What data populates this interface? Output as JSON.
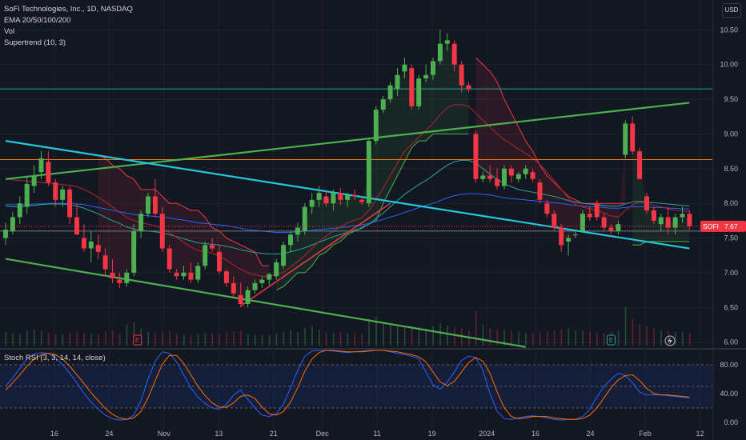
{
  "legend": {
    "symbol": "SoFi Technologies, Inc., 1D, NASDAQ",
    "ema": "EMA 20/50/100/200",
    "vol": "Vol",
    "supertrend": "Supertrend (10, 3)"
  },
  "rsi_legend": "Stoch RSI (3, 3, 14, 14, close)",
  "currency": "USD",
  "price_tag": {
    "ticker": "SOFI",
    "value": "7.67",
    "price": 7.67
  },
  "event_markers": [
    "E",
    "E"
  ],
  "colors": {
    "up": "#4caf50",
    "down": "#f23645",
    "ema_red": "#b2262e",
    "ema_teal": "#26a69a",
    "ema_blue": "#2962ff",
    "trend_green": "#4caf50",
    "trend_teal": "#26c6da",
    "level_orange": "#f57c00",
    "level_teal": "#26a69a",
    "rsi_k": "#2962ff",
    "rsi_d": "#ff6d00",
    "supertrend_up": "#4caf50",
    "supertrend_down": "#f23645"
  },
  "chart_data": {
    "type": "candlestick",
    "price_ylim": [
      5.95,
      10.7
    ],
    "price_ticks": [
      "10.50",
      "10.00",
      "9.50",
      "9.00",
      "8.50",
      "8.00",
      "7.50",
      "7.00",
      "6.50",
      "6.00"
    ],
    "x_ticks": [
      "16",
      "24",
      "Nov",
      "13",
      "21",
      "Dec",
      "11",
      "19",
      "2024",
      "16",
      "24",
      "Feb",
      "12"
    ],
    "candles": [
      [
        7.5,
        7.72,
        7.4,
        7.62
      ],
      [
        7.6,
        7.88,
        7.55,
        7.8
      ],
      [
        7.8,
        8.1,
        7.7,
        8.0
      ],
      [
        7.95,
        8.4,
        7.85,
        8.28
      ],
      [
        8.25,
        8.55,
        8.15,
        8.4
      ],
      [
        8.45,
        8.75,
        8.35,
        8.65
      ],
      [
        8.6,
        8.75,
        8.25,
        8.3
      ],
      [
        8.3,
        8.35,
        7.95,
        8.05
      ],
      [
        8.05,
        8.25,
        7.95,
        8.2
      ],
      [
        8.2,
        8.25,
        7.7,
        7.8
      ],
      [
        7.8,
        8.0,
        7.55,
        7.55
      ],
      [
        7.5,
        7.7,
        7.3,
        7.35
      ],
      [
        7.35,
        7.6,
        7.15,
        7.45
      ],
      [
        7.4,
        7.55,
        7.2,
        7.3
      ],
      [
        7.25,
        7.35,
        6.95,
        7.05
      ],
      [
        7.0,
        7.2,
        6.85,
        6.92
      ],
      [
        6.9,
        7.0,
        6.78,
        6.85
      ],
      [
        6.85,
        7.05,
        6.8,
        7.0
      ],
      [
        7.0,
        7.7,
        6.95,
        7.6
      ],
      [
        7.6,
        7.9,
        7.5,
        7.85
      ],
      [
        7.85,
        8.15,
        7.8,
        8.1
      ],
      [
        8.1,
        8.35,
        7.8,
        7.85
      ],
      [
        7.85,
        7.95,
        7.3,
        7.35
      ],
      [
        7.35,
        7.4,
        7.0,
        7.05
      ],
      [
        7.0,
        7.05,
        6.9,
        6.95
      ],
      [
        6.95,
        7.1,
        6.9,
        7.0
      ],
      [
        7.0,
        7.15,
        6.85,
        6.9
      ],
      [
        6.9,
        7.15,
        6.85,
        7.1
      ],
      [
        7.1,
        7.45,
        7.05,
        7.4
      ],
      [
        7.4,
        7.5,
        7.3,
        7.35
      ],
      [
        7.3,
        7.4,
        6.98,
        7.02
      ],
      [
        7.02,
        7.05,
        6.8,
        6.85
      ],
      [
        6.85,
        6.95,
        6.65,
        6.7
      ],
      [
        6.68,
        6.85,
        6.5,
        6.55
      ],
      [
        6.55,
        6.8,
        6.5,
        6.75
      ],
      [
        6.75,
        6.9,
        6.7,
        6.85
      ],
      [
        6.85,
        6.95,
        6.78,
        6.9
      ],
      [
        6.9,
        7.0,
        6.82,
        6.98
      ],
      [
        6.95,
        7.2,
        6.9,
        7.15
      ],
      [
        7.1,
        7.45,
        7.05,
        7.4
      ],
      [
        7.4,
        7.6,
        7.3,
        7.55
      ],
      [
        7.55,
        7.72,
        7.45,
        7.65
      ],
      [
        7.6,
        8.0,
        7.55,
        7.95
      ],
      [
        7.95,
        8.15,
        7.85,
        8.05
      ],
      [
        8.05,
        8.25,
        7.95,
        8.15
      ],
      [
        8.1,
        8.2,
        7.95,
        8.0
      ],
      [
        8.0,
        8.2,
        7.9,
        8.15
      ],
      [
        8.15,
        8.22,
        7.98,
        8.05
      ],
      [
        8.05,
        8.15,
        7.95,
        8.12
      ],
      [
        8.12,
        8.2,
        8.05,
        8.1
      ],
      [
        8.05,
        8.1,
        7.98,
        8.02
      ],
      [
        8.0,
        8.95,
        7.95,
        8.9
      ],
      [
        8.9,
        9.4,
        8.85,
        9.35
      ],
      [
        9.35,
        9.55,
        9.3,
        9.5
      ],
      [
        9.5,
        9.75,
        9.45,
        9.7
      ],
      [
        9.65,
        9.95,
        9.55,
        9.85
      ],
      [
        9.9,
        10.1,
        9.8,
        10.0
      ],
      [
        9.95,
        10.0,
        9.35,
        9.4
      ],
      [
        9.4,
        9.85,
        9.35,
        9.8
      ],
      [
        9.8,
        10.0,
        9.75,
        9.85
      ],
      [
        9.85,
        10.1,
        9.78,
        10.05
      ],
      [
        10.05,
        10.5,
        10.0,
        10.3
      ],
      [
        10.3,
        10.45,
        10.2,
        10.35
      ],
      [
        10.3,
        10.35,
        9.9,
        10.0
      ],
      [
        10.0,
        10.05,
        9.6,
        9.7
      ],
      [
        9.7,
        9.75,
        9.6,
        9.65
      ],
      [
        9.0,
        9.05,
        8.3,
        8.35
      ],
      [
        8.35,
        8.45,
        8.3,
        8.4
      ],
      [
        8.4,
        8.55,
        8.3,
        8.35
      ],
      [
        8.35,
        8.5,
        8.2,
        8.25
      ],
      [
        8.25,
        8.55,
        8.2,
        8.5
      ],
      [
        8.5,
        8.55,
        8.3,
        8.4
      ],
      [
        8.35,
        8.45,
        8.3,
        8.42
      ],
      [
        8.42,
        8.55,
        8.35,
        8.5
      ],
      [
        8.45,
        8.5,
        8.3,
        8.35
      ],
      [
        8.3,
        8.35,
        8.0,
        8.05
      ],
      [
        8.0,
        8.05,
        7.8,
        7.85
      ],
      [
        7.85,
        7.9,
        7.6,
        7.65
      ],
      [
        7.65,
        7.7,
        7.3,
        7.4
      ],
      [
        7.45,
        7.55,
        7.25,
        7.5
      ],
      [
        7.55,
        7.6,
        7.5,
        7.55
      ],
      [
        7.6,
        7.9,
        7.58,
        7.85
      ],
      [
        7.85,
        7.95,
        7.75,
        7.8
      ],
      [
        8.0,
        8.05,
        7.75,
        7.8
      ],
      [
        7.8,
        7.85,
        7.6,
        7.65
      ],
      [
        7.65,
        7.7,
        7.55,
        7.6
      ],
      [
        7.6,
        7.75,
        7.55,
        7.7
      ],
      [
        8.7,
        9.2,
        8.65,
        9.15
      ],
      [
        9.15,
        9.25,
        8.7,
        8.75
      ],
      [
        8.75,
        8.8,
        8.35,
        8.35
      ],
      [
        8.1,
        8.15,
        7.85,
        7.9
      ],
      [
        7.9,
        7.95,
        7.7,
        7.75
      ],
      [
        7.7,
        7.85,
        7.6,
        7.8
      ],
      [
        7.8,
        7.95,
        7.55,
        7.65
      ],
      [
        7.65,
        7.85,
        7.55,
        7.8
      ],
      [
        7.8,
        7.95,
        7.72,
        7.85
      ],
      [
        7.85,
        7.9,
        7.62,
        7.67
      ]
    ],
    "ema_red": [
      8.35,
      8.34,
      8.33,
      8.32,
      8.31,
      8.3,
      8.29,
      8.28,
      8.27,
      8.26,
      8.24,
      8.2,
      8.15,
      8.09,
      8.02,
      7.95,
      7.87,
      7.8,
      7.75,
      7.72,
      7.7,
      7.68,
      7.64,
      7.58,
      7.51,
      7.44,
      7.37,
      7.32,
      7.3,
      7.28,
      7.24,
      7.18,
      7.11,
      7.05,
      7.0,
      6.97,
      6.95,
      6.95,
      6.97,
      7.01,
      7.08,
      7.16,
      7.25,
      7.35,
      7.45,
      7.53,
      7.6,
      7.66,
      7.72,
      7.76,
      7.79,
      7.9,
      8.05,
      8.22,
      8.4,
      8.58,
      8.75,
      8.85,
      8.95,
      9.05,
      9.15,
      9.28,
      9.38,
      9.42,
      9.42,
      9.4,
      9.3,
      9.2,
      9.1,
      9.0,
      8.92,
      8.85,
      8.78,
      8.72,
      8.65,
      8.56,
      8.45,
      8.33,
      8.2,
      8.08,
      7.98,
      7.95,
      7.92,
      7.9,
      7.86,
      7.82,
      7.8,
      7.9,
      7.98,
      8.02,
      8.0,
      7.97,
      7.95,
      7.92,
      7.9,
      7.89,
      7.88
    ],
    "ema_teal": [
      7.96,
      7.95,
      7.95,
      7.96,
      7.97,
      7.98,
      7.99,
      7.99,
      7.99,
      7.98,
      7.96,
      7.93,
      7.89,
      7.85,
      7.8,
      7.75,
      7.71,
      7.66,
      7.63,
      7.61,
      7.6,
      7.59,
      7.57,
      7.55,
      7.52,
      7.49,
      7.46,
      7.43,
      7.42,
      7.41,
      7.4,
      7.38,
      7.36,
      7.33,
      7.31,
      7.29,
      7.28,
      7.27,
      7.27,
      7.28,
      7.3,
      7.33,
      7.36,
      7.4,
      7.44,
      7.48,
      7.52,
      7.55,
      7.58,
      7.61,
      7.64,
      7.7,
      7.78,
      7.86,
      7.95,
      8.04,
      8.13,
      8.2,
      8.27,
      8.33,
      8.4,
      8.48,
      8.55,
      8.6,
      8.62,
      8.62,
      8.58,
      8.5,
      8.42,
      8.35,
      8.28,
      8.24,
      8.2,
      8.18,
      8.16,
      8.14,
      8.12,
      8.1,
      8.07,
      8.04,
      8.02,
      8.0,
      7.99,
      7.98,
      7.97,
      7.96,
      7.96,
      7.99,
      8.02,
      8.03,
      8.02,
      8.01,
      8.0,
      7.99,
      7.98,
      7.97,
      7.96
    ],
    "ema_blue": [
      7.98,
      7.98,
      7.98,
      7.98,
      7.99,
      7.99,
      8.0,
      8.0,
      8.0,
      8.0,
      7.99,
      7.98,
      7.96,
      7.94,
      7.92,
      7.9,
      7.88,
      7.86,
      7.84,
      7.83,
      7.82,
      7.81,
      7.8,
      7.79,
      7.77,
      7.76,
      7.74,
      7.72,
      7.71,
      7.7,
      7.69,
      7.68,
      7.66,
      7.64,
      7.62,
      7.61,
      7.6,
      7.59,
      7.58,
      7.58,
      7.58,
      7.59,
      7.6,
      7.61,
      7.62,
      7.63,
      7.64,
      7.65,
      7.66,
      7.68,
      7.69,
      7.71,
      7.74,
      7.77,
      7.8,
      7.83,
      7.87,
      7.9,
      7.94,
      7.97,
      8.0,
      8.04,
      8.08,
      8.11,
      8.13,
      8.14,
      8.14,
      8.13,
      8.12,
      8.1,
      8.08,
      8.07,
      8.06,
      8.05,
      8.04,
      8.03,
      8.02,
      8.01,
      8.0,
      7.98,
      7.97,
      7.96,
      7.95,
      7.95,
      7.94,
      7.93,
      7.93,
      7.94,
      7.95,
      7.95,
      7.95,
      7.94,
      7.94,
      7.93,
      7.93,
      7.92,
      7.92
    ],
    "supertrend_segments": [
      {
        "color": "down",
        "from": 13,
        "values": [
          8.7,
          8.65,
          8.55,
          8.5,
          8.4,
          8.35,
          8.2,
          8.2,
          8.2,
          8.1,
          8.0,
          8.0,
          7.95,
          7.9,
          7.9,
          7.8,
          7.65,
          7.6,
          7.5,
          7.45,
          7.4,
          7.35,
          7.3,
          7.1,
          7.1
        ]
      },
      {
        "color": "up",
        "from": 38,
        "values": [
          6.75,
          6.8,
          6.9,
          7.0,
          7.0,
          7.1,
          7.25,
          7.3,
          7.4,
          7.45,
          7.55,
          7.6,
          7.65,
          7.7,
          7.75,
          8.0,
          8.2,
          8.4,
          8.6,
          8.8,
          8.9,
          8.9,
          9.0,
          9.0,
          9.0,
          9.0,
          9.0,
          9.0
        ]
      },
      {
        "color": "down",
        "from": 66,
        "values": [
          10.1,
          10.0,
          9.9,
          9.75,
          9.5,
          9.3,
          9.1,
          8.9,
          8.75,
          8.55,
          8.4,
          8.3,
          8.2,
          8.1,
          8.05,
          8.0,
          8.0,
          8.0,
          8.0,
          8.0,
          8.0,
          8.0
        ]
      },
      {
        "color": "up",
        "from": 88,
        "values": [
          7.4,
          7.4,
          7.45,
          7.45,
          7.45,
          7.45,
          7.45,
          7.45,
          7.45
        ]
      }
    ],
    "horizontal_levels": [
      {
        "price": 9.65,
        "color": "teal"
      },
      {
        "price": 8.63,
        "color": "orange"
      },
      {
        "price": 7.6,
        "color": "grey"
      }
    ],
    "trendlines": [
      {
        "p1": [
          0,
          8.35
        ],
        "p2": [
          96,
          9.45
        ],
        "color": "green"
      },
      {
        "p1": [
          0,
          8.9
        ],
        "p2": [
          96,
          7.35
        ],
        "color": "teal"
      },
      {
        "p1": [
          0,
          7.2
        ],
        "p2": [
          73,
          5.93
        ],
        "color": "green"
      },
      {
        "p1": [
          33,
          6.52
        ],
        "p2": [
          54,
          8.0
        ],
        "color": "red"
      }
    ],
    "volume": [
      0.35,
      0.32,
      0.3,
      0.4,
      0.42,
      0.38,
      0.34,
      0.3,
      0.28,
      0.33,
      0.36,
      0.32,
      0.3,
      0.29,
      0.35,
      0.4,
      0.3,
      0.55,
      0.6,
      0.45,
      0.36,
      0.33,
      0.35,
      0.38,
      0.3,
      0.28,
      0.26,
      0.3,
      0.34,
      0.32,
      0.31,
      0.35,
      0.36,
      0.39,
      0.3,
      0.29,
      0.28,
      0.27,
      0.3,
      0.36,
      0.4,
      0.35,
      0.44,
      0.5,
      0.42,
      0.35,
      0.33,
      0.36,
      0.34,
      0.32,
      0.3,
      0.7,
      0.75,
      0.6,
      0.55,
      0.5,
      0.52,
      0.5,
      0.48,
      0.45,
      0.5,
      0.58,
      0.52,
      0.48,
      0.46,
      0.4,
      0.9,
      0.55,
      0.45,
      0.42,
      0.4,
      0.38,
      0.36,
      0.34,
      0.33,
      0.35,
      0.37,
      0.4,
      0.42,
      0.45,
      0.4,
      0.38,
      0.36,
      0.35,
      0.33,
      0.36,
      0.4,
      1.0,
      0.7,
      0.55,
      0.5,
      0.45,
      0.4,
      0.38,
      0.35,
      0.36,
      0.33
    ],
    "stoch_rsi": {
      "ylim": [
        -8,
        100
      ],
      "ticks": [
        "80.00",
        "40.00",
        "0.00"
      ],
      "levels": [
        80,
        50,
        20
      ],
      "k": [
        50,
        62,
        75,
        88,
        95,
        97,
        96,
        90,
        80,
        68,
        55,
        40,
        28,
        18,
        10,
        5,
        3,
        4,
        10,
        30,
        60,
        85,
        98,
        96,
        84,
        66,
        48,
        35,
        26,
        20,
        18,
        25,
        38,
        45,
        32,
        20,
        10,
        8,
        12,
        25,
        48,
        72,
        92,
        99,
        100,
        100,
        99,
        98,
        97,
        98,
        99,
        100,
        100,
        100,
        98,
        96,
        94,
        92,
        88,
        70,
        52,
        46,
        56,
        70,
        86,
        92,
        90,
        72,
        40,
        15,
        5,
        4,
        6,
        8,
        9,
        8,
        6,
        4,
        3,
        4,
        4,
        8,
        18,
        35,
        50,
        60,
        68,
        65,
        55,
        42,
        38,
        38,
        38,
        37,
        36,
        35,
        34
      ],
      "d": [
        45,
        55,
        66,
        78,
        88,
        94,
        96,
        94,
        88,
        78,
        66,
        54,
        41,
        30,
        19,
        11,
        6,
        4,
        6,
        15,
        34,
        58,
        81,
        93,
        93,
        82,
        66,
        50,
        37,
        27,
        21,
        21,
        27,
        36,
        38,
        33,
        21,
        12,
        10,
        15,
        28,
        48,
        71,
        88,
        97,
        100,
        100,
        99,
        98,
        98,
        98,
        99,
        100,
        100,
        99,
        98,
        96,
        94,
        91,
        84,
        70,
        56,
        51,
        57,
        70,
        83,
        90,
        85,
        68,
        42,
        20,
        8,
        5,
        6,
        8,
        8,
        8,
        6,
        5,
        4,
        4,
        5,
        10,
        20,
        34,
        48,
        59,
        65,
        66,
        58,
        47,
        40,
        38,
        38,
        37,
        36,
        35
      ]
    }
  }
}
